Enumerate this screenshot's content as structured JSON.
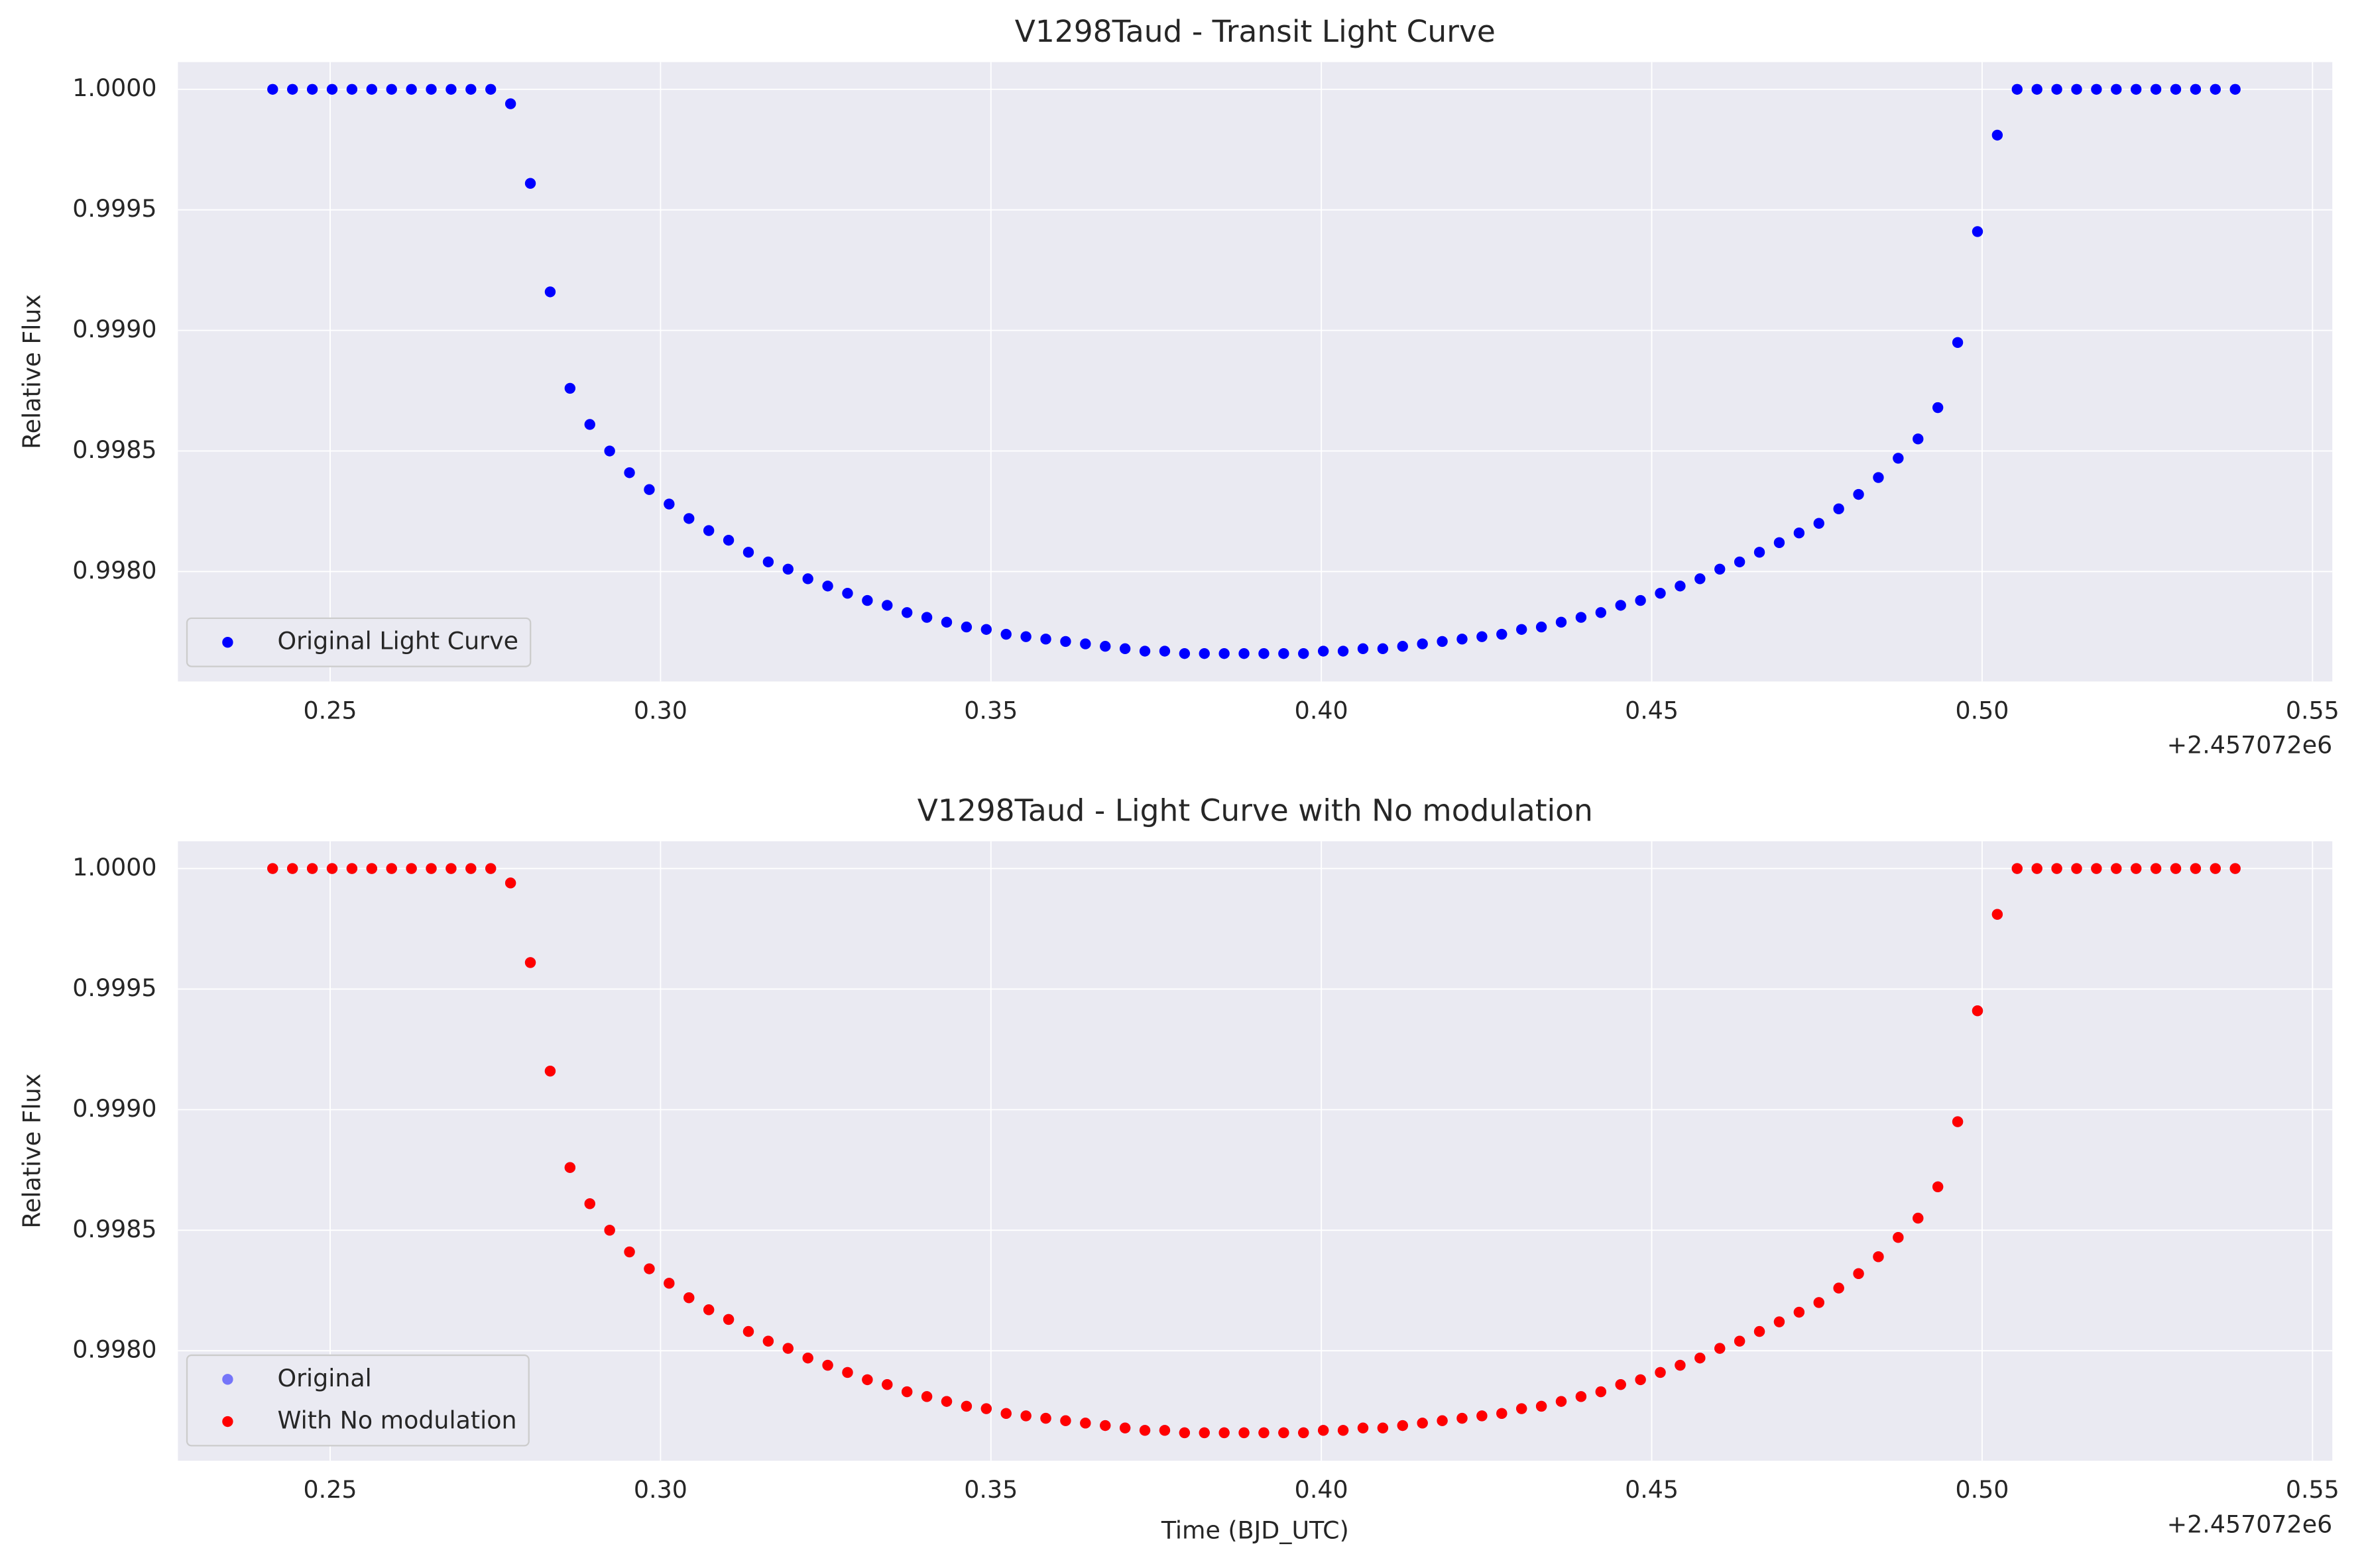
{
  "chart_data": [
    {
      "type": "scatter",
      "title": "V1298Taud - Transit Light Curve",
      "ylabel": "Relative Flux",
      "x_offset_label": "+2.457072e6",
      "x": [
        0.2413,
        0.2443,
        0.2473,
        0.2503,
        0.2533,
        0.2563,
        0.2593,
        0.2623,
        0.2653,
        0.2683,
        0.2713,
        0.2743,
        0.2773,
        0.2803,
        0.2833,
        0.2863,
        0.2893,
        0.2923,
        0.2953,
        0.2983,
        0.3013,
        0.3043,
        0.3073,
        0.3103,
        0.3133,
        0.3163,
        0.3193,
        0.3223,
        0.3253,
        0.3283,
        0.3313,
        0.3343,
        0.3373,
        0.3403,
        0.3433,
        0.3463,
        0.3493,
        0.3523,
        0.3553,
        0.3583,
        0.3613,
        0.3643,
        0.3673,
        0.3703,
        0.3733,
        0.3763,
        0.3793,
        0.3823,
        0.3853,
        0.3883,
        0.3913,
        0.3943,
        0.3973,
        0.4003,
        0.4033,
        0.4063,
        0.4093,
        0.4123,
        0.4153,
        0.4183,
        0.4213,
        0.4243,
        0.4273,
        0.4303,
        0.4333,
        0.4363,
        0.4393,
        0.4423,
        0.4453,
        0.4483,
        0.4513,
        0.4543,
        0.4573,
        0.4603,
        0.4633,
        0.4663,
        0.4693,
        0.4723,
        0.4753,
        0.4783,
        0.4813,
        0.4843,
        0.4873,
        0.4903,
        0.4933,
        0.4963,
        0.4993,
        0.5023,
        0.5053,
        0.5083,
        0.5113,
        0.5143,
        0.5173,
        0.5203,
        0.5233,
        0.5263,
        0.5293,
        0.5323,
        0.5353,
        0.5383
      ],
      "series": [
        {
          "name": "Original Light Curve",
          "color": "#0000ff",
          "values": [
            1,
            1,
            1,
            1,
            1,
            1,
            1,
            1,
            1,
            1,
            1,
            1,
            0.99994,
            0.99961,
            0.99916,
            0.99876,
            0.99861,
            0.9985,
            0.99841,
            0.99834,
            0.99828,
            0.99822,
            0.99817,
            0.99813,
            0.99808,
            0.99804,
            0.99801,
            0.99797,
            0.99794,
            0.99791,
            0.99788,
            0.99786,
            0.99783,
            0.99781,
            0.99779,
            0.99777,
            0.99776,
            0.99774,
            0.99773,
            0.99772,
            0.99771,
            0.9977,
            0.99769,
            0.99768,
            0.99767,
            0.99767,
            0.99766,
            0.99766,
            0.99766,
            0.99766,
            0.99766,
            0.99766,
            0.99766,
            0.99767,
            0.99767,
            0.99768,
            0.99768,
            0.99769,
            0.9977,
            0.99771,
            0.99772,
            0.99773,
            0.99774,
            0.99776,
            0.99777,
            0.99779,
            0.99781,
            0.99783,
            0.99786,
            0.99788,
            0.99791,
            0.99794,
            0.99797,
            0.99801,
            0.99804,
            0.99808,
            0.99812,
            0.99816,
            0.9982,
            0.99826,
            0.99832,
            0.99839,
            0.99847,
            0.99855,
            0.99868,
            0.99895,
            0.99941,
            0.99981,
            1,
            1,
            1,
            1,
            1,
            1,
            1,
            1,
            1,
            1,
            1,
            1
          ]
        }
      ],
      "xlim": [
        0.22696,
        0.553
      ],
      "ylim": [
        0.997544,
        1.000113
      ],
      "xticks": [
        0.25,
        {
          "value": 0.3,
          "label": "0.30"
        },
        0.35,
        {
          "value": 0.4,
          "label": "0.40"
        },
        0.45,
        {
          "value": 0.5,
          "label": "0.50"
        },
        0.55
      ],
      "yticks": [
        {
          "value": 0.998,
          "label": "0.9980"
        },
        0.9985,
        {
          "value": 0.999,
          "label": "0.9990"
        },
        0.9995,
        {
          "value": 1,
          "label": "1.0000"
        }
      ],
      "grid": true,
      "legend": "lower left"
    },
    {
      "type": "scatter",
      "title": "V1298Taud - Light Curve with No modulation",
      "xlabel": "Time (BJD_UTC)",
      "ylabel": "Relative Flux",
      "x_offset_label": "+2.457072e6",
      "x": [
        0.2413,
        0.2443,
        0.2473,
        0.2503,
        0.2533,
        0.2563,
        0.2593,
        0.2623,
        0.2653,
        0.2683,
        0.2713,
        0.2743,
        0.2773,
        0.2803,
        0.2833,
        0.2863,
        0.2893,
        0.2923,
        0.2953,
        0.2983,
        0.3013,
        0.3043,
        0.3073,
        0.3103,
        0.3133,
        0.3163,
        0.3193,
        0.3223,
        0.3253,
        0.3283,
        0.3313,
        0.3343,
        0.3373,
        0.3403,
        0.3433,
        0.3463,
        0.3493,
        0.3523,
        0.3553,
        0.3583,
        0.3613,
        0.3643,
        0.3673,
        0.3703,
        0.3733,
        0.3763,
        0.3793,
        0.3823,
        0.3853,
        0.3883,
        0.3913,
        0.3943,
        0.3973,
        0.4003,
        0.4033,
        0.4063,
        0.4093,
        0.4123,
        0.4153,
        0.4183,
        0.4213,
        0.4243,
        0.4273,
        0.4303,
        0.4333,
        0.4363,
        0.4393,
        0.4423,
        0.4453,
        0.4483,
        0.4513,
        0.4543,
        0.4573,
        0.4603,
        0.4633,
        0.4663,
        0.4693,
        0.4723,
        0.4753,
        0.4783,
        0.4813,
        0.4843,
        0.4873,
        0.4903,
        0.4933,
        0.4963,
        0.4993,
        0.5023,
        0.5053,
        0.5083,
        0.5113,
        0.5143,
        0.5173,
        0.5203,
        0.5233,
        0.5263,
        0.5293,
        0.5323,
        0.5353,
        0.5383
      ],
      "series": [
        {
          "name": "Original",
          "color": "#0000ff",
          "alpha": 0.5,
          "values": [
            1,
            1,
            1,
            1,
            1,
            1,
            1,
            1,
            1,
            1,
            1,
            1,
            0.99994,
            0.99961,
            0.99916,
            0.99876,
            0.99861,
            0.9985,
            0.99841,
            0.99834,
            0.99828,
            0.99822,
            0.99817,
            0.99813,
            0.99808,
            0.99804,
            0.99801,
            0.99797,
            0.99794,
            0.99791,
            0.99788,
            0.99786,
            0.99783,
            0.99781,
            0.99779,
            0.99777,
            0.99776,
            0.99774,
            0.99773,
            0.99772,
            0.99771,
            0.9977,
            0.99769,
            0.99768,
            0.99767,
            0.99767,
            0.99766,
            0.99766,
            0.99766,
            0.99766,
            0.99766,
            0.99766,
            0.99766,
            0.99767,
            0.99767,
            0.99768,
            0.99768,
            0.99769,
            0.9977,
            0.99771,
            0.99772,
            0.99773,
            0.99774,
            0.99776,
            0.99777,
            0.99779,
            0.99781,
            0.99783,
            0.99786,
            0.99788,
            0.99791,
            0.99794,
            0.99797,
            0.99801,
            0.99804,
            0.99808,
            0.99812,
            0.99816,
            0.9982,
            0.99826,
            0.99832,
            0.99839,
            0.99847,
            0.99855,
            0.99868,
            0.99895,
            0.99941,
            0.99981,
            1,
            1,
            1,
            1,
            1,
            1,
            1,
            1,
            1,
            1,
            1,
            1
          ]
        },
        {
          "name": "With No modulation",
          "color": "#ff0000",
          "alpha": 1,
          "values": [
            1,
            1,
            1,
            1,
            1,
            1,
            1,
            1,
            1,
            1,
            1,
            1,
            0.99994,
            0.99961,
            0.99916,
            0.99876,
            0.99861,
            0.9985,
            0.99841,
            0.99834,
            0.99828,
            0.99822,
            0.99817,
            0.99813,
            0.99808,
            0.99804,
            0.99801,
            0.99797,
            0.99794,
            0.99791,
            0.99788,
            0.99786,
            0.99783,
            0.99781,
            0.99779,
            0.99777,
            0.99776,
            0.99774,
            0.99773,
            0.99772,
            0.99771,
            0.9977,
            0.99769,
            0.99768,
            0.99767,
            0.99767,
            0.99766,
            0.99766,
            0.99766,
            0.99766,
            0.99766,
            0.99766,
            0.99766,
            0.99767,
            0.99767,
            0.99768,
            0.99768,
            0.99769,
            0.9977,
            0.99771,
            0.99772,
            0.99773,
            0.99774,
            0.99776,
            0.99777,
            0.99779,
            0.99781,
            0.99783,
            0.99786,
            0.99788,
            0.99791,
            0.99794,
            0.99797,
            0.99801,
            0.99804,
            0.99808,
            0.99812,
            0.99816,
            0.9982,
            0.99826,
            0.99832,
            0.99839,
            0.99847,
            0.99855,
            0.99868,
            0.99895,
            0.99941,
            0.99981,
            1,
            1,
            1,
            1,
            1,
            1,
            1,
            1,
            1,
            1,
            1,
            1
          ]
        }
      ],
      "xlim": [
        0.22696,
        0.553
      ],
      "ylim": [
        0.997544,
        1.000113
      ],
      "xticks": [
        0.25,
        {
          "value": 0.3,
          "label": "0.30"
        },
        0.35,
        {
          "value": 0.4,
          "label": "0.40"
        },
        0.45,
        {
          "value": 0.5,
          "label": "0.50"
        },
        0.55
      ],
      "yticks": [
        {
          "value": 0.998,
          "label": "0.9980"
        },
        0.9985,
        {
          "value": 0.999,
          "label": "0.9990"
        },
        0.9995,
        {
          "value": 1,
          "label": "1.0000"
        }
      ],
      "grid": true,
      "legend": "lower left"
    }
  ]
}
